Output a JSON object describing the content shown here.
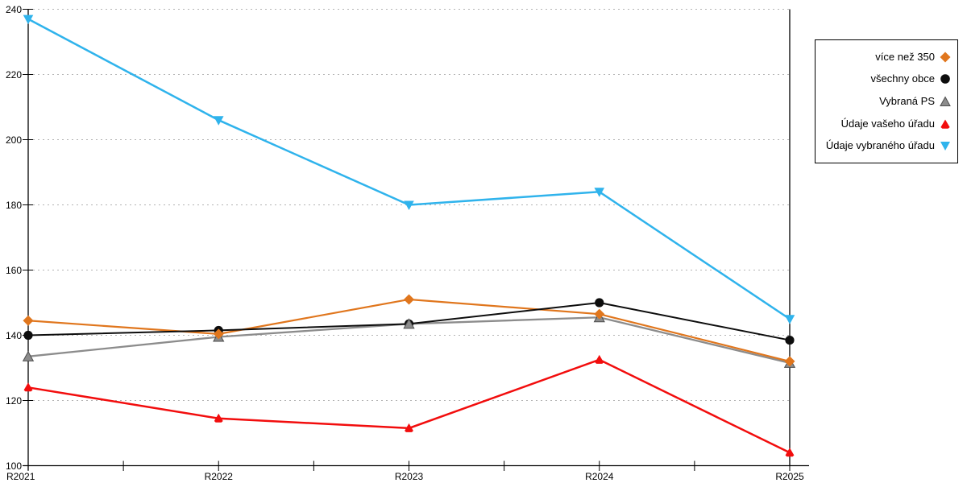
{
  "chart_data": {
    "type": "line",
    "title": "",
    "xlabel": "",
    "ylabel": "",
    "categories": [
      "R2021",
      "R2022",
      "R2023",
      "R2024",
      "R2025"
    ],
    "series": [
      {
        "name": "více než 350",
        "color": "#e0761d",
        "marker": "diamond",
        "values": [
          144.5,
          140.4,
          151.0,
          146.5,
          132.0
        ]
      },
      {
        "name": "všechny obce",
        "color": "#0d0d0d",
        "marker": "circle",
        "values": [
          140.0,
          141.5,
          143.5,
          150.0,
          138.5
        ]
      },
      {
        "name": "Vybraná PS",
        "color": "#8c8c8c",
        "marker": "triangle-up",
        "values": [
          133.5,
          139.5,
          143.5,
          145.5,
          131.5
        ]
      },
      {
        "name": "Údaje vašeho úřadu",
        "color": "#f20d0d",
        "marker": "triangle-up-rounded",
        "values": [
          124.0,
          114.5,
          111.5,
          132.5,
          104.0
        ]
      },
      {
        "name": "Údaje vybraného úřadu",
        "color": "#2fb3ec",
        "marker": "triangle-down",
        "values": [
          237.0,
          206.0,
          180.0,
          184.0,
          145.0
        ]
      }
    ],
    "ylim": [
      100,
      240
    ],
    "ytick_step": 20,
    "ytick_labels": [
      "100",
      "120",
      "140",
      "160",
      "180",
      "200",
      "220",
      "240"
    ],
    "grid": "horizontal-dashed",
    "gridline_color": "#b3b3b3",
    "axis_color": "#000000",
    "legend_position": "top-right"
  }
}
